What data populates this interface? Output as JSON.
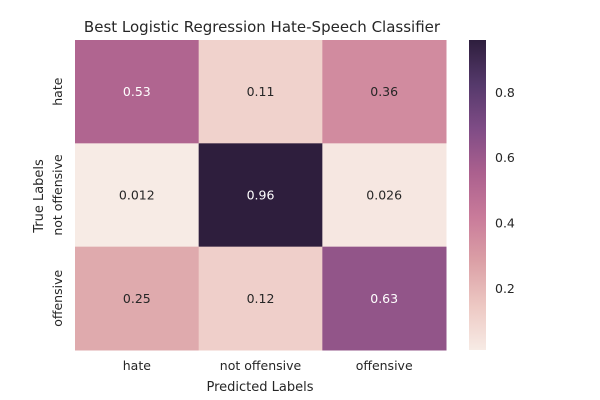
{
  "chart_data": {
    "type": "heatmap",
    "title": "Best  Logistic Regression Hate-Speech Classifier",
    "xlabel": "Predicted Labels",
    "ylabel": "True Labels",
    "x_categories": [
      "hate",
      "not offensive",
      "offensive"
    ],
    "y_categories": [
      "hate",
      "not offensive",
      "offensive"
    ],
    "values": [
      [
        0.53,
        0.11,
        0.36
      ],
      [
        0.012,
        0.96,
        0.026
      ],
      [
        0.25,
        0.12,
        0.63
      ]
    ],
    "cell_labels": [
      [
        "0.53",
        "0.11",
        "0.36"
      ],
      [
        "0.012",
        "0.96",
        "0.026"
      ],
      [
        "0.25",
        "0.12",
        "0.63"
      ]
    ],
    "colorbar": {
      "range": [
        0.012,
        0.96
      ],
      "ticks": [
        0.2,
        0.4,
        0.6,
        0.8
      ],
      "tick_labels": [
        "0.2",
        "0.4",
        "0.6",
        "0.8"
      ]
    },
    "colormap": [
      "#f7ebe5",
      "#edc8c3",
      "#dba0a6",
      "#c97b9a",
      "#ab608e",
      "#7f4c86",
      "#55396b",
      "#2e1e3d"
    ],
    "grid": false
  }
}
